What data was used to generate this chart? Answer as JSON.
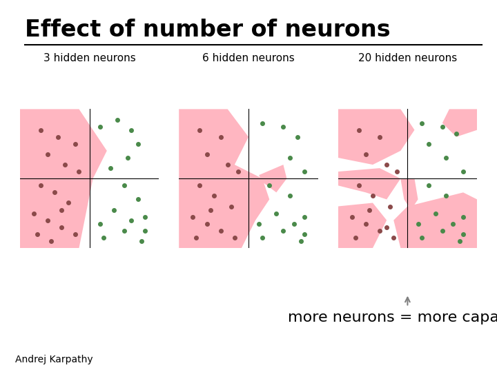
{
  "title": "Effect of number of neurons",
  "author": "Andrej Karpathy",
  "annotation": "more neurons = more capacity",
  "panels": [
    {
      "label": "3 hidden neurons"
    },
    {
      "label": "6 hidden neurons"
    },
    {
      "label": "20 hidden neurons"
    }
  ],
  "green_color": "#90EE90",
  "pink_color": "#FFB6C1",
  "dot_green": "#4a8a4a",
  "dot_red": "#8b4a4a",
  "bg_color": "#ffffff",
  "title_fontsize": 24,
  "label_fontsize": 11,
  "annotation_fontsize": 16,
  "author_fontsize": 10
}
